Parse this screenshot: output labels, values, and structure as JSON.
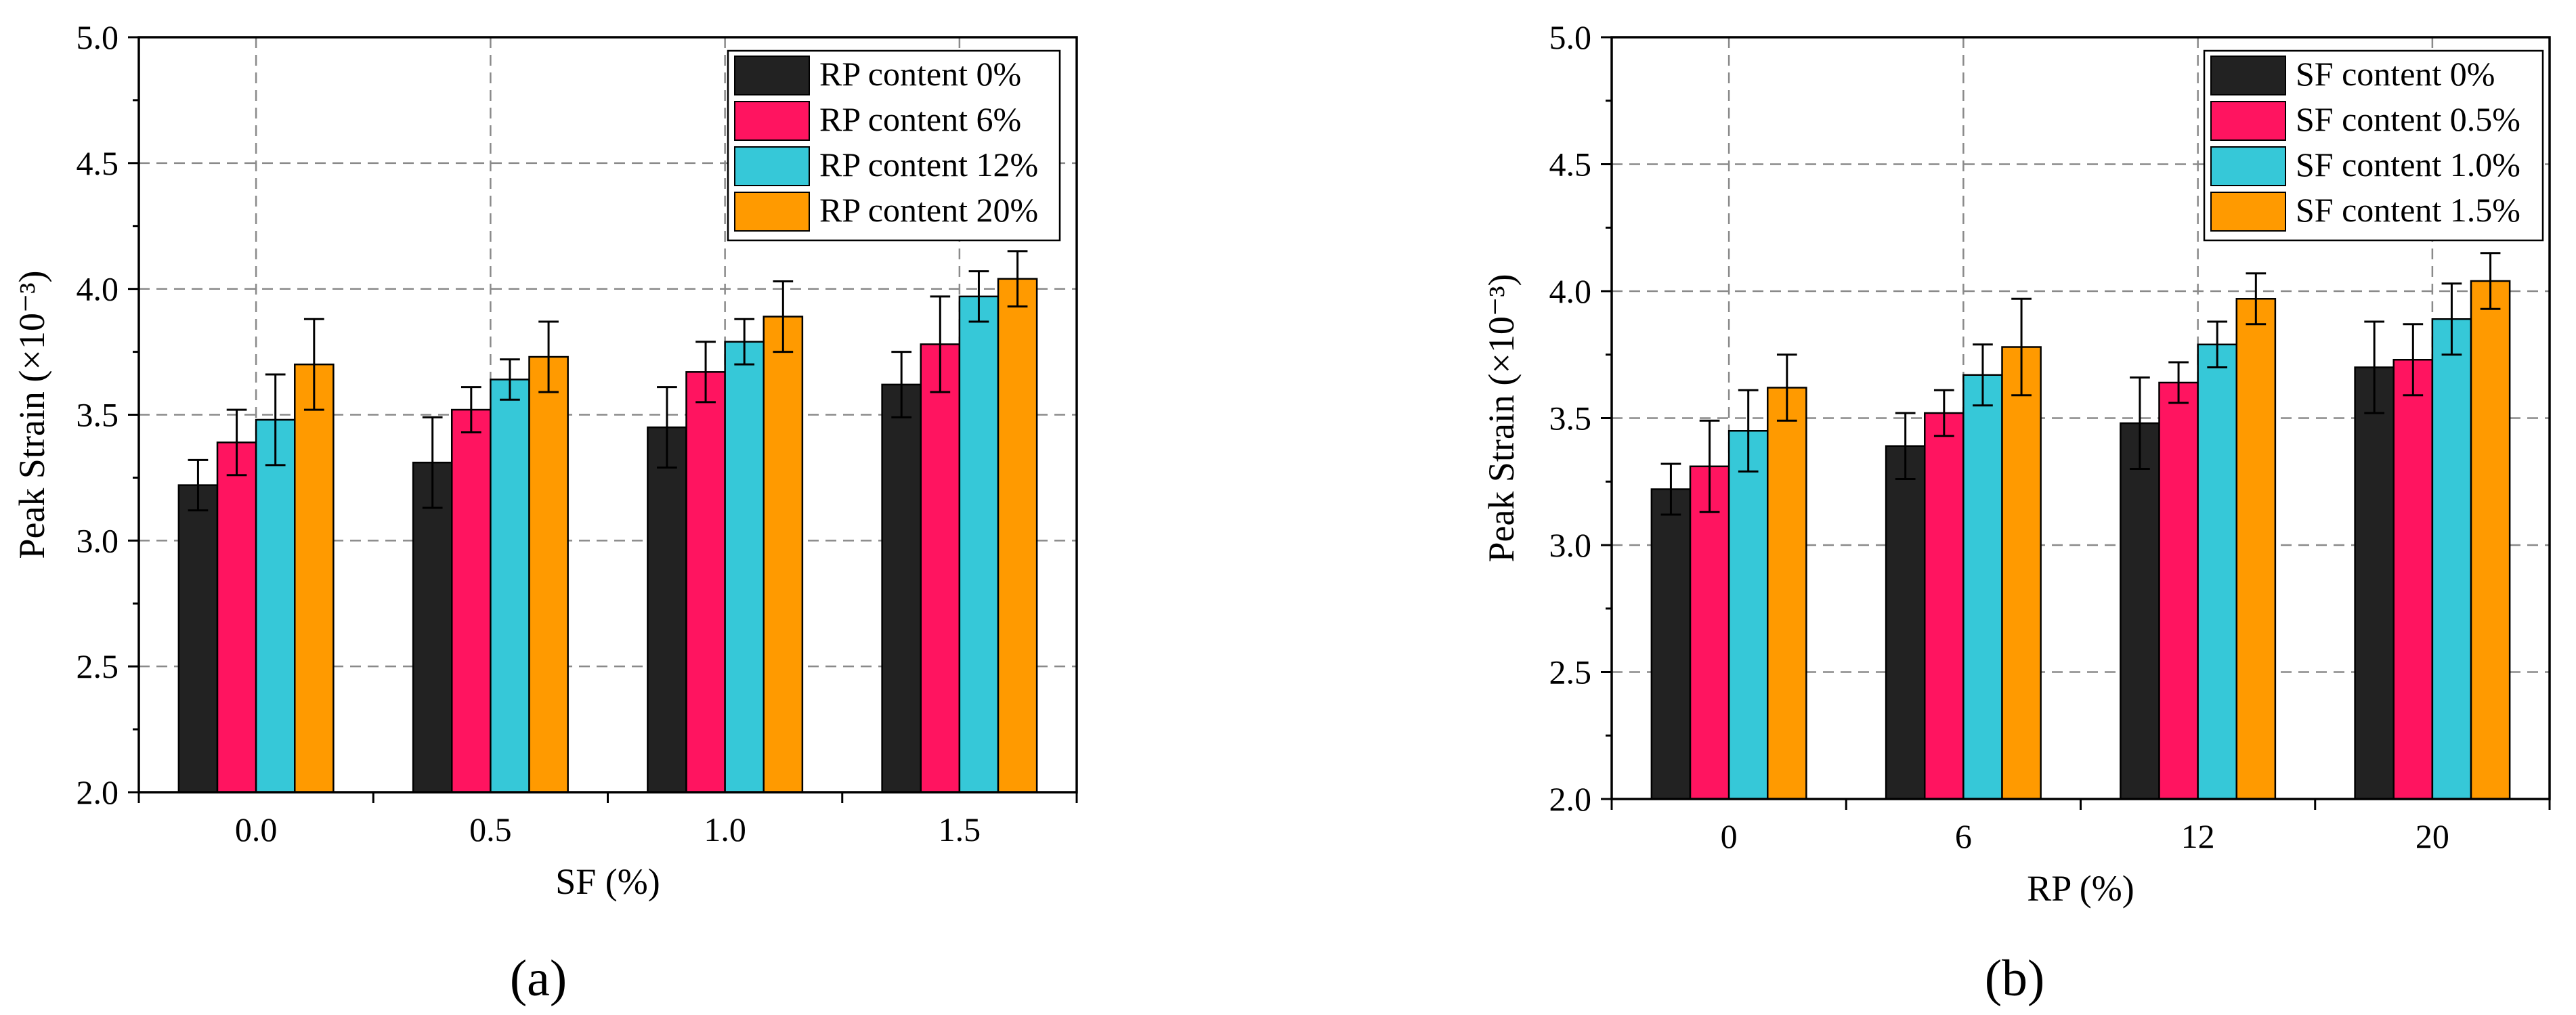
{
  "figure": {
    "panel_labels": [
      "(a)",
      "(b)"
    ]
  },
  "chart_data": [
    {
      "type": "bar",
      "panel": "(a)",
      "xlabel": "SF (%)",
      "ylabel": "Peak Strain (×10⁻³)",
      "ylim": [
        2.0,
        5.0
      ],
      "yticks": [
        "2.0",
        "2.5",
        "3.0",
        "3.5",
        "4.0",
        "4.5",
        "5.0"
      ],
      "categories": [
        "0.0",
        "0.5",
        "1.0",
        "1.5"
      ],
      "grid": true,
      "legend_position": "top-right",
      "series": [
        {
          "name": "RP content 0%",
          "color": "#222222",
          "values": [
            3.22,
            3.31,
            3.45,
            3.62
          ],
          "errors": [
            0.1,
            0.18,
            0.16,
            0.13
          ]
        },
        {
          "name": "RP content 6%",
          "color": "#ff1460",
          "values": [
            3.39,
            3.52,
            3.67,
            3.78
          ],
          "errors": [
            0.13,
            0.09,
            0.12,
            0.19
          ]
        },
        {
          "name": "RP content 12%",
          "color": "#36c8d8",
          "values": [
            3.48,
            3.64,
            3.79,
            3.97
          ],
          "errors": [
            0.18,
            0.08,
            0.09,
            0.1
          ]
        },
        {
          "name": "RP content 20%",
          "color": "#ff9a00",
          "values": [
            3.7,
            3.73,
            3.89,
            4.04
          ],
          "errors": [
            0.18,
            0.14,
            0.14,
            0.11
          ]
        }
      ]
    },
    {
      "type": "bar",
      "panel": "(b)",
      "xlabel": "RP (%)",
      "ylabel": "Peak Strain (×10⁻³)",
      "ylim": [
        2.0,
        5.0
      ],
      "yticks": [
        "2.0",
        "2.5",
        "3.0",
        "3.5",
        "4.0",
        "4.5",
        "5.0"
      ],
      "categories": [
        "0",
        "6",
        "12",
        "20"
      ],
      "grid": true,
      "legend_position": "top-right",
      "series": [
        {
          "name": "SF content 0%",
          "color": "#222222",
          "values": [
            3.22,
            3.39,
            3.48,
            3.7
          ],
          "errors": [
            0.1,
            0.13,
            0.18,
            0.18
          ]
        },
        {
          "name": "SF content 0.5%",
          "color": "#ff1460",
          "values": [
            3.31,
            3.52,
            3.64,
            3.73
          ],
          "errors": [
            0.18,
            0.09,
            0.08,
            0.14
          ]
        },
        {
          "name": "SF content 1.0%",
          "color": "#36c8d8",
          "values": [
            3.45,
            3.67,
            3.79,
            3.89
          ],
          "errors": [
            0.16,
            0.12,
            0.09,
            0.14
          ]
        },
        {
          "name": "SF content 1.5%",
          "color": "#ff9a00",
          "values": [
            3.62,
            3.78,
            3.97,
            4.04
          ],
          "errors": [
            0.13,
            0.19,
            0.1,
            0.11
          ]
        }
      ]
    }
  ]
}
